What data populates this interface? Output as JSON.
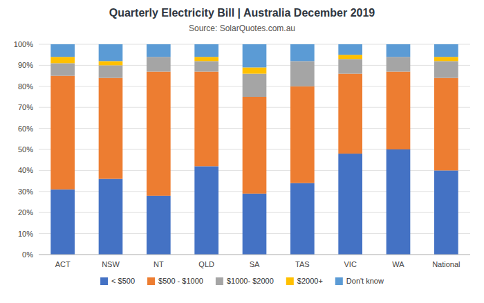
{
  "chart_data": {
    "type": "bar",
    "stacked": true,
    "title": "Quarterly Electricity Bill | Australia December 2019",
    "subtitle": "Source: SolarQuotes.com.au",
    "categories": [
      "ACT",
      "NSW",
      "NT",
      "QLD",
      "SA",
      "TAS",
      "VIC",
      "WA",
      "National"
    ],
    "series": [
      {
        "name": "< $500",
        "color": "#4472C4",
        "values": [
          31,
          36,
          28,
          42,
          29,
          34,
          48,
          50,
          40
        ]
      },
      {
        "name": "$500 - $1000",
        "color": "#ED7D31",
        "values": [
          54,
          48,
          59,
          45,
          46,
          46,
          38,
          37,
          44
        ]
      },
      {
        "name": "$1000- $2000",
        "color": "#A5A5A5",
        "values": [
          6,
          6,
          7,
          5,
          11,
          12,
          7,
          7,
          8
        ]
      },
      {
        "name": "$2000+",
        "color": "#FFC000",
        "values": [
          3,
          2,
          0,
          2,
          3,
          0,
          2,
          0,
          2
        ]
      },
      {
        "name": "Don't know",
        "color": "#5B9BD5",
        "values": [
          6,
          8,
          6,
          6,
          11,
          8,
          5,
          6,
          6
        ]
      }
    ],
    "ylim": [
      0,
      100
    ],
    "yticks": [
      {
        "value": 0,
        "label": "0%"
      },
      {
        "value": 10,
        "label": "10%"
      },
      {
        "value": 20,
        "label": "20%"
      },
      {
        "value": 30,
        "label": "30%"
      },
      {
        "value": 40,
        "label": "40%"
      },
      {
        "value": 50,
        "label": "50%"
      },
      {
        "value": 60,
        "label": "60%"
      },
      {
        "value": 70,
        "label": "70%"
      },
      {
        "value": 80,
        "label": "80%"
      },
      {
        "value": 90,
        "label": "90%"
      },
      {
        "value": 100,
        "label": "100%"
      }
    ],
    "grid": true,
    "legend": "bottom"
  }
}
